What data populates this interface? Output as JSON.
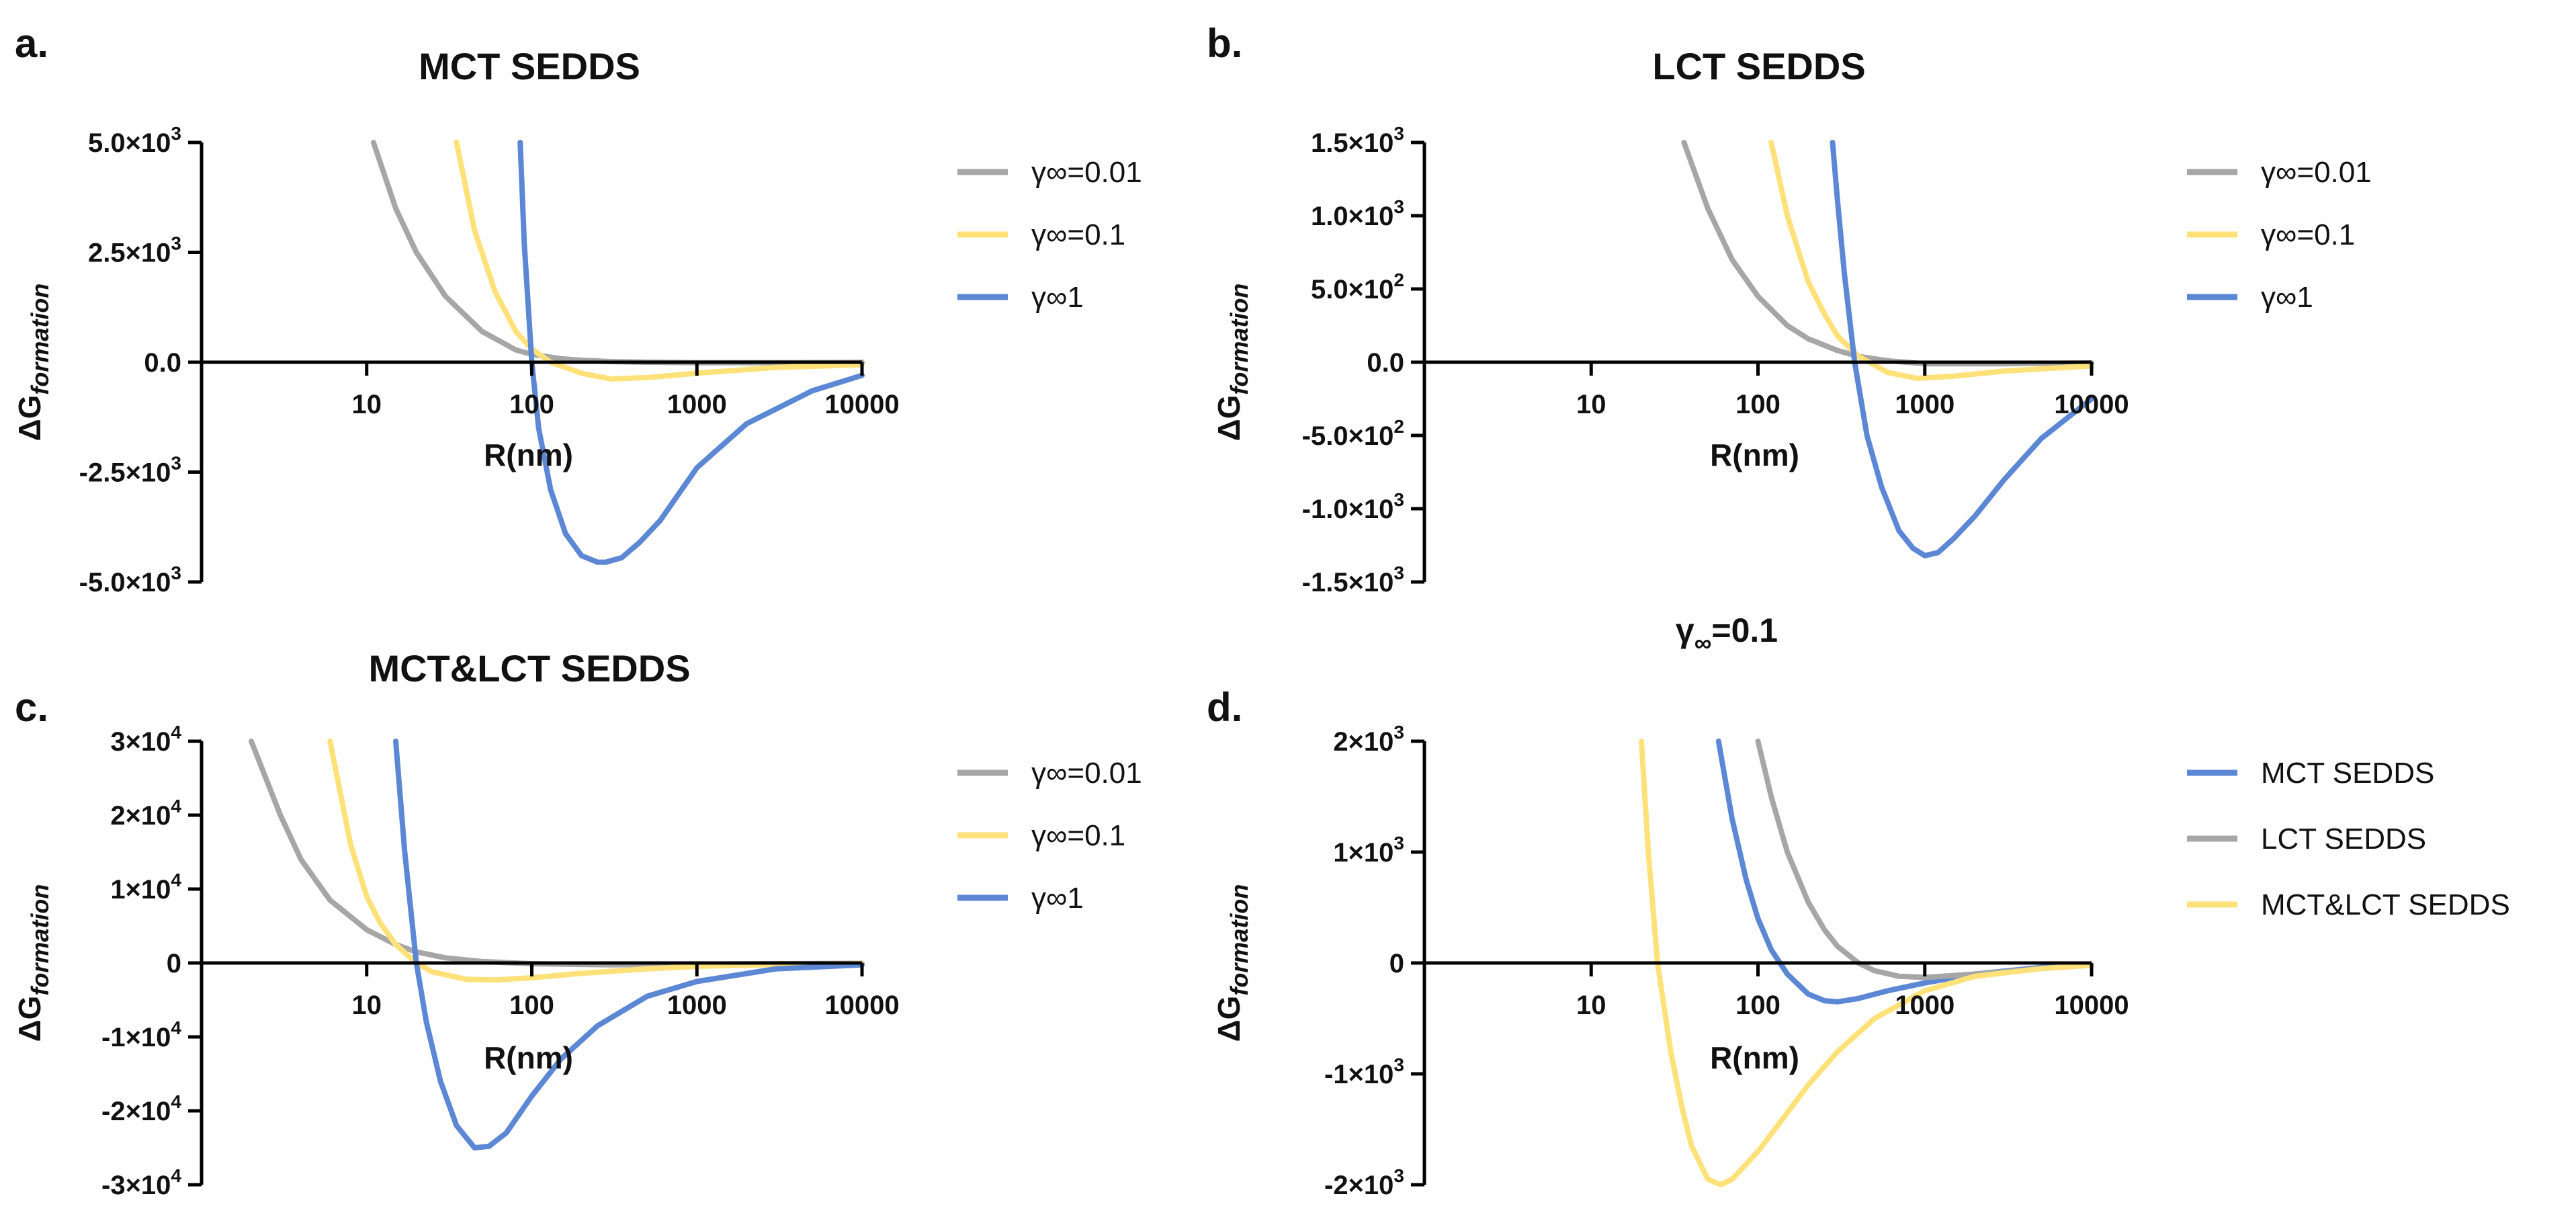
{
  "figure": {
    "note_prefix": "γ",
    "note_sub": "∞",
    "note_value": "=0.1"
  },
  "colors": {
    "gray": "#A6A6A6",
    "yellow": "#FFE17A",
    "blue": "#5B87D4",
    "axis": "#000000"
  },
  "chart_data": [
    {
      "id": "a",
      "panel_letter": "a.",
      "type": "line",
      "title": "MCT SEDDS",
      "xlabel": "R(nm)",
      "ylabel_main": "ΔG",
      "ylabel_sub": "formation",
      "xscale": "log",
      "xlim": [
        1,
        10000
      ],
      "ylim": [
        -5000,
        5000
      ],
      "xticks": [
        10,
        100,
        1000,
        10000
      ],
      "xtick_labels": [
        "10",
        "100",
        "1000",
        "10000"
      ],
      "yticks": [
        5000,
        2500,
        0,
        -2500,
        -5000
      ],
      "ytick_labels": [
        {
          "mant": "5.0×10",
          "exp": "3"
        },
        {
          "mant": "2.5×10",
          "exp": "3"
        },
        {
          "mant": "0.0",
          "exp": ""
        },
        {
          "mant": "-2.5×10",
          "exp": "3"
        },
        {
          "mant": "-5.0×10",
          "exp": "3"
        }
      ],
      "legend_position": "right",
      "series": [
        {
          "name": "γ∞=0.01",
          "color": "#A6A6A6",
          "x": [
            11,
            15,
            20,
            30,
            50,
            80,
            100,
            150,
            200,
            300,
            500,
            1000,
            3000,
            10000
          ],
          "y": [
            5000,
            3500,
            2500,
            1500,
            700,
            280,
            180,
            80,
            45,
            15,
            0,
            -10,
            -10,
            -5
          ]
        },
        {
          "name": "γ∞=0.1",
          "color": "#FFE17A",
          "x": [
            35,
            45,
            60,
            80,
            100,
            130,
            200,
            300,
            500,
            1000,
            3000,
            10000
          ],
          "y": [
            5000,
            3000,
            1600,
            700,
            300,
            0,
            -250,
            -380,
            -350,
            -250,
            -120,
            -60
          ]
        },
        {
          "name": "γ∞1",
          "color": "#5B87D4",
          "x": [
            85,
            90,
            100,
            110,
            130,
            160,
            200,
            250,
            280,
            350,
            450,
            600,
            1000,
            2000,
            5000,
            10000
          ],
          "y": [
            5000,
            2700,
            0,
            -1500,
            -2900,
            -3900,
            -4400,
            -4550,
            -4550,
            -4450,
            -4100,
            -3600,
            -2400,
            -1400,
            -650,
            -300
          ]
        }
      ]
    },
    {
      "id": "b",
      "panel_letter": "b.",
      "type": "line",
      "title": "LCT SEDDS",
      "xlabel": "R(nm)",
      "ylabel_main": "ΔG",
      "ylabel_sub": "formation",
      "xscale": "log",
      "xlim": [
        1,
        10000
      ],
      "ylim": [
        -1500,
        1500
      ],
      "xticks": [
        10,
        100,
        1000,
        10000
      ],
      "xtick_labels": [
        "10",
        "100",
        "1000",
        "10000"
      ],
      "yticks": [
        1500,
        1000,
        500,
        0,
        -500,
        -1000,
        -1500
      ],
      "ytick_labels": [
        {
          "mant": "1.5×10",
          "exp": "3"
        },
        {
          "mant": "1.0×10",
          "exp": "3"
        },
        {
          "mant": "5.0×10",
          "exp": "2"
        },
        {
          "mant": "0.0",
          "exp": ""
        },
        {
          "mant": "-5.0×10",
          "exp": "2"
        },
        {
          "mant": "-1.0×10",
          "exp": "3"
        },
        {
          "mant": "-1.5×10",
          "exp": "3"
        }
      ],
      "legend_position": "right",
      "series": [
        {
          "name": "γ∞=0.01",
          "color": "#A6A6A6",
          "x": [
            36,
            50,
            70,
            100,
            150,
            200,
            300,
            400,
            600,
            1000,
            3000,
            10000
          ],
          "y": [
            1500,
            1050,
            700,
            450,
            250,
            160,
            80,
            40,
            10,
            -10,
            -10,
            -5
          ]
        },
        {
          "name": "γ∞=0.1",
          "color": "#FFE17A",
          "x": [
            120,
            150,
            200,
            250,
            300,
            400,
            600,
            900,
            1500,
            3000,
            10000
          ],
          "y": [
            1500,
            1000,
            550,
            330,
            180,
            40,
            -70,
            -110,
            -95,
            -60,
            -25
          ]
        },
        {
          "name": "γ∞1",
          "color": "#5B87D4",
          "x": [
            280,
            300,
            330,
            380,
            450,
            550,
            700,
            850,
            1000,
            1200,
            1500,
            2000,
            3000,
            5000,
            10000
          ],
          "y": [
            1500,
            1100,
            600,
            0,
            -500,
            -850,
            -1150,
            -1270,
            -1320,
            -1300,
            -1200,
            -1050,
            -800,
            -520,
            -250
          ]
        }
      ]
    },
    {
      "id": "c",
      "panel_letter": "c.",
      "type": "line",
      "title": "MCT&LCT SEDDS",
      "xlabel": "R(nm)",
      "ylabel_main": "ΔG",
      "ylabel_sub": "formation",
      "xscale": "log",
      "xlim": [
        1,
        10000
      ],
      "ylim": [
        -30000,
        30000
      ],
      "xticks": [
        10,
        100,
        1000,
        10000
      ],
      "xtick_labels": [
        "10",
        "100",
        "1000",
        "10000"
      ],
      "yticks": [
        30000,
        20000,
        10000,
        0,
        -10000,
        -20000,
        -30000
      ],
      "ytick_labels": [
        {
          "mant": "3×10",
          "exp": "4"
        },
        {
          "mant": "2×10",
          "exp": "4"
        },
        {
          "mant": "1×10",
          "exp": "4"
        },
        {
          "mant": "0",
          "exp": ""
        },
        {
          "mant": "-1×10",
          "exp": "4"
        },
        {
          "mant": "-2×10",
          "exp": "4"
        },
        {
          "mant": "-3×10",
          "exp": "4"
        }
      ],
      "legend_position": "right",
      "series": [
        {
          "name": "γ∞=0.01",
          "color": "#A6A6A6",
          "x": [
            2,
            3,
            4,
            6,
            10,
            15,
            20,
            30,
            50,
            100,
            300,
            1000,
            10000
          ],
          "y": [
            30000,
            20000,
            14000,
            8500,
            4500,
            2500,
            1500,
            700,
            200,
            -100,
            -250,
            -150,
            -50
          ]
        },
        {
          "name": "γ∞=0.1",
          "color": "#FFE17A",
          "x": [
            6,
            8,
            10,
            12,
            15,
            20,
            25,
            40,
            60,
            100,
            200,
            500,
            1000,
            3000,
            10000
          ],
          "y": [
            30000,
            16000,
            9000,
            5500,
            2500,
            0,
            -1200,
            -2200,
            -2300,
            -2000,
            -1400,
            -800,
            -450,
            -200,
            -80
          ]
        },
        {
          "name": "γ∞1",
          "color": "#5B87D4",
          "x": [
            15,
            17,
            20,
            23,
            28,
            35,
            45,
            55,
            70,
            100,
            150,
            250,
            500,
            1000,
            3000,
            10000
          ],
          "y": [
            30000,
            15000,
            0,
            -8000,
            -16000,
            -22000,
            -25000,
            -24800,
            -23000,
            -18000,
            -13000,
            -8500,
            -4500,
            -2500,
            -800,
            -250
          ]
        }
      ]
    },
    {
      "id": "d",
      "panel_letter": "d.",
      "type": "line",
      "title": "",
      "xlabel": "R(nm)",
      "ylabel_main": "ΔG",
      "ylabel_sub": "formation",
      "xscale": "log",
      "xlim": [
        1,
        10000
      ],
      "ylim": [
        -2000,
        2000
      ],
      "xticks": [
        10,
        100,
        1000,
        10000
      ],
      "xtick_labels": [
        "10",
        "100",
        "1000",
        "10000"
      ],
      "yticks": [
        2000,
        1000,
        0,
        -1000,
        -2000
      ],
      "ytick_labels": [
        {
          "mant": "2×10",
          "exp": "3"
        },
        {
          "mant": "1×10",
          "exp": "3"
        },
        {
          "mant": "0",
          "exp": ""
        },
        {
          "mant": "-1×10",
          "exp": "3"
        },
        {
          "mant": "-2×10",
          "exp": "3"
        }
      ],
      "legend_position": "right",
      "series": [
        {
          "name": "MCT SEDDS",
          "color": "#5B87D4",
          "x": [
            58,
            70,
            85,
            100,
            120,
            150,
            200,
            250,
            300,
            400,
            600,
            1000,
            2000,
            5000,
            10000
          ],
          "y": [
            2000,
            1300,
            750,
            400,
            120,
            -100,
            -280,
            -340,
            -350,
            -320,
            -250,
            -180,
            -100,
            -40,
            -20
          ]
        },
        {
          "name": "LCT SEDDS",
          "color": "#A6A6A6",
          "x": [
            100,
            120,
            150,
            200,
            250,
            300,
            400,
            500,
            700,
            1000,
            2000,
            5000,
            10000
          ],
          "y": [
            2000,
            1500,
            1000,
            550,
            300,
            150,
            0,
            -70,
            -120,
            -130,
            -100,
            -50,
            -20
          ]
        },
        {
          "name": "MCT&LCT SEDDS",
          "color": "#FFE17A",
          "x": [
            20,
            22,
            25,
            30,
            35,
            40,
            50,
            60,
            70,
            100,
            150,
            200,
            300,
            500,
            1000,
            2000,
            5000,
            10000
          ],
          "y": [
            2000,
            1000,
            0,
            -800,
            -1300,
            -1650,
            -1950,
            -2000,
            -1950,
            -1700,
            -1350,
            -1100,
            -800,
            -500,
            -250,
            -120,
            -50,
            -20
          ]
        }
      ]
    }
  ]
}
